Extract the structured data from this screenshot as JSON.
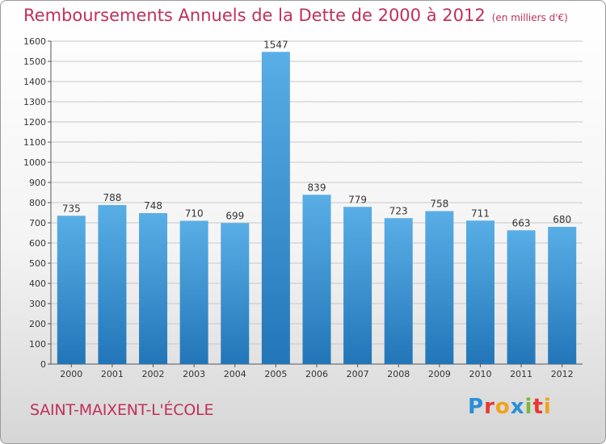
{
  "title": "Remboursements Annuels de la Dette de 2000 à 2012",
  "unit_note": "(en milliers d'€)",
  "place_name": "SAINT-MAIXENT-L'ÉCOLE",
  "logo": {
    "text": "Proxiti",
    "letters": [
      "P",
      "r",
      "o",
      "x",
      "i",
      "t",
      "i"
    ],
    "colors": [
      "#2a8fd8",
      "#e8382f",
      "#f0a21a",
      "#2a8fd8",
      "#7ab83a",
      "#e8382f",
      "#f0a21a"
    ]
  },
  "colors": {
    "bar_top": "#5aaee6",
    "bar_bottom": "#2276b8",
    "grid": "#c8c8c8",
    "title": "#c0305a"
  },
  "chart_data": {
    "type": "bar",
    "categories": [
      "2000",
      "2001",
      "2002",
      "2003",
      "2004",
      "2005",
      "2006",
      "2007",
      "2008",
      "2009",
      "2010",
      "2011",
      "2012"
    ],
    "values": [
      735,
      788,
      748,
      710,
      699,
      1547,
      839,
      779,
      723,
      758,
      711,
      663,
      680
    ],
    "ylim": [
      0,
      1600
    ],
    "yticks": [
      0,
      100,
      200,
      300,
      400,
      500,
      600,
      700,
      800,
      900,
      1000,
      1100,
      1200,
      1300,
      1400,
      1500,
      1600
    ],
    "grid": true,
    "data_labels": true
  }
}
